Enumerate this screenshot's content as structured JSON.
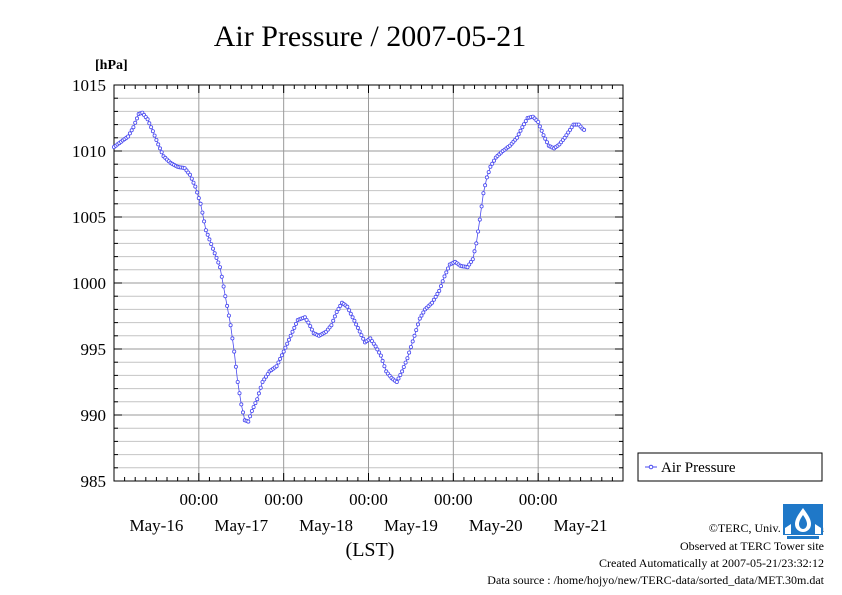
{
  "chart_data": {
    "type": "line",
    "title": "Air Pressure / 2007-05-21",
    "ylabel": "[hPa]",
    "xlabel": "(LST)",
    "ylim": [
      985,
      1015
    ],
    "yticks": [
      "985",
      "990",
      "995",
      "1000",
      "1005",
      "1010",
      "1015"
    ],
    "x_range_hours": [
      0,
      144
    ],
    "x_ticks": [
      {
        "hour": 24,
        "label": "00:00"
      },
      {
        "hour": 48,
        "label": "00:00"
      },
      {
        "hour": 72,
        "label": "00:00"
      },
      {
        "hour": 96,
        "label": "00:00"
      },
      {
        "hour": 120,
        "label": "00:00"
      }
    ],
    "date_labels": [
      {
        "hour": 12,
        "label": "May-16"
      },
      {
        "hour": 36,
        "label": "May-17"
      },
      {
        "hour": 60,
        "label": "May-18"
      },
      {
        "hour": 84,
        "label": "May-19"
      },
      {
        "hour": 108,
        "label": "May-20"
      },
      {
        "hour": 132,
        "label": "May-21"
      }
    ],
    "grid": true,
    "legend_position": "right",
    "series": [
      {
        "name": "Air Pressure",
        "color": "#4a4af0",
        "points": [
          [
            0,
            1010.3
          ],
          [
            2,
            1010.7
          ],
          [
            4,
            1011.1
          ],
          [
            5.5,
            1011.8
          ],
          [
            7,
            1012.8
          ],
          [
            8,
            1012.9
          ],
          [
            9.5,
            1012.4
          ],
          [
            11,
            1011.5
          ],
          [
            12.5,
            1010.5
          ],
          [
            14,
            1009.6
          ],
          [
            16,
            1009.1
          ],
          [
            18,
            1008.8
          ],
          [
            20,
            1008.7
          ],
          [
            21.5,
            1008.2
          ],
          [
            23,
            1007.3
          ],
          [
            24.5,
            1006.0
          ],
          [
            26,
            1004.0
          ],
          [
            28,
            1002.6
          ],
          [
            30,
            1001.2
          ],
          [
            31.5,
            999.0
          ],
          [
            33,
            996.8
          ],
          [
            34,
            994.8
          ],
          [
            35,
            992.5
          ],
          [
            36,
            990.8
          ],
          [
            37,
            989.6
          ],
          [
            38,
            989.5
          ],
          [
            39,
            990.3
          ],
          [
            40.5,
            991.2
          ],
          [
            42,
            992.5
          ],
          [
            44,
            993.3
          ],
          [
            46,
            993.7
          ],
          [
            48,
            994.8
          ],
          [
            50,
            996.0
          ],
          [
            52,
            997.2
          ],
          [
            54,
            997.4
          ],
          [
            55,
            997.0
          ],
          [
            56.5,
            996.2
          ],
          [
            58,
            996.0
          ],
          [
            60,
            996.3
          ],
          [
            61.5,
            996.8
          ],
          [
            63,
            997.8
          ],
          [
            64.5,
            998.5
          ],
          [
            66,
            998.2
          ],
          [
            67.5,
            997.4
          ],
          [
            69,
            996.6
          ],
          [
            71,
            995.5
          ],
          [
            72.5,
            995.8
          ],
          [
            74,
            995.2
          ],
          [
            75.5,
            994.5
          ],
          [
            77,
            993.3
          ],
          [
            78.5,
            992.8
          ],
          [
            80,
            992.5
          ],
          [
            81.5,
            993.3
          ],
          [
            83,
            994.3
          ],
          [
            85,
            996.0
          ],
          [
            86.5,
            997.3
          ],
          [
            88,
            998.0
          ],
          [
            90,
            998.5
          ],
          [
            92,
            999.4
          ],
          [
            93.5,
            1000.5
          ],
          [
            95,
            1001.4
          ],
          [
            96.5,
            1001.6
          ],
          [
            98,
            1001.3
          ],
          [
            100,
            1001.2
          ],
          [
            101.5,
            1001.8
          ],
          [
            102.5,
            1003.0
          ],
          [
            103.5,
            1004.8
          ],
          [
            104.5,
            1006.8
          ],
          [
            105.5,
            1008.0
          ],
          [
            106.5,
            1008.8
          ],
          [
            108,
            1009.5
          ],
          [
            110,
            1010.0
          ],
          [
            112,
            1010.4
          ],
          [
            114,
            1011.0
          ],
          [
            115.5,
            1011.8
          ],
          [
            117,
            1012.5
          ],
          [
            118.5,
            1012.6
          ],
          [
            120,
            1012.2
          ],
          [
            121.5,
            1011.2
          ],
          [
            123,
            1010.4
          ],
          [
            124.5,
            1010.2
          ],
          [
            126,
            1010.5
          ],
          [
            127.5,
            1011.0
          ],
          [
            129,
            1011.6
          ],
          [
            130,
            1012.0
          ],
          [
            131.5,
            1012.0
          ],
          [
            132.5,
            1011.7
          ],
          [
            133,
            1011.6
          ]
        ]
      }
    ]
  },
  "footer": {
    "copyright": "©TERC, Univ. Tsukuba",
    "observed": "Observed at TERC Tower site",
    "created": "Created Automatically at 2007-05-21/23:32:12",
    "source": "Data source : /home/hojyo/new/TERC-data/sorted_data/MET.30m.dat"
  }
}
